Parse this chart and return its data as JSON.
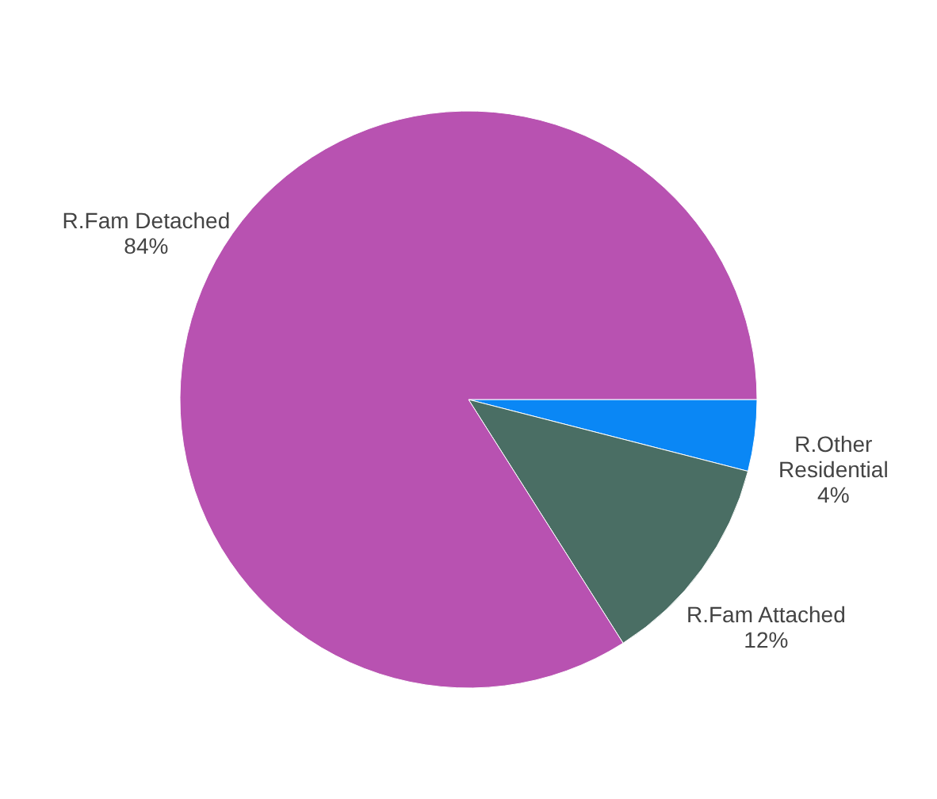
{
  "chart_data": {
    "type": "pie",
    "categories": [
      "R.Other Residential",
      "R.Fam Attached",
      "R.Fam Detached"
    ],
    "values": [
      4,
      12,
      84
    ],
    "value_labels": [
      "4%",
      "12%",
      "84%"
    ],
    "colors": [
      "#0a87f5",
      "#4a6e64",
      "#b852b1"
    ],
    "legend": false
  }
}
